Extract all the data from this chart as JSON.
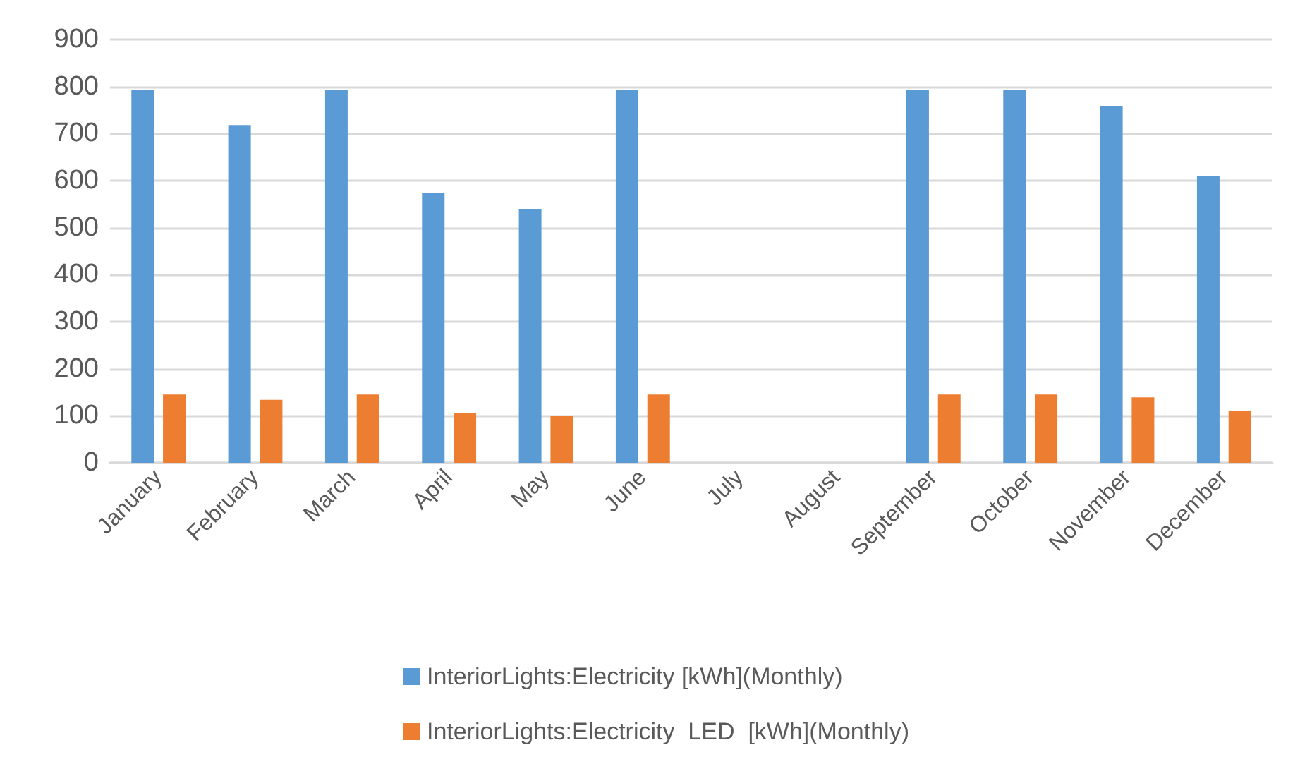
{
  "chart_data": {
    "type": "bar",
    "categories": [
      "January",
      "February",
      "March",
      "April",
      "May",
      "June",
      "July",
      "August",
      "September",
      "October",
      "November",
      "December"
    ],
    "series": [
      {
        "name": "InteriorLights:Electricity [kWh](Monthly)",
        "color": "#5b9bd5",
        "values": [
          792,
          718,
          792,
          574,
          540,
          792,
          0,
          0,
          792,
          792,
          759,
          609
        ]
      },
      {
        "name": "InteriorLights:Electricity  LED  [kWh](Monthly)",
        "color": "#ed7d31",
        "values": [
          145,
          134,
          145,
          105,
          99,
          145,
          0,
          0,
          145,
          145,
          139,
          111
        ]
      }
    ],
    "ylim": [
      0,
      900
    ],
    "yticks": [
      0,
      100,
      200,
      300,
      400,
      500,
      600,
      700,
      800,
      900
    ],
    "grid": "y",
    "legend": "bottom"
  }
}
